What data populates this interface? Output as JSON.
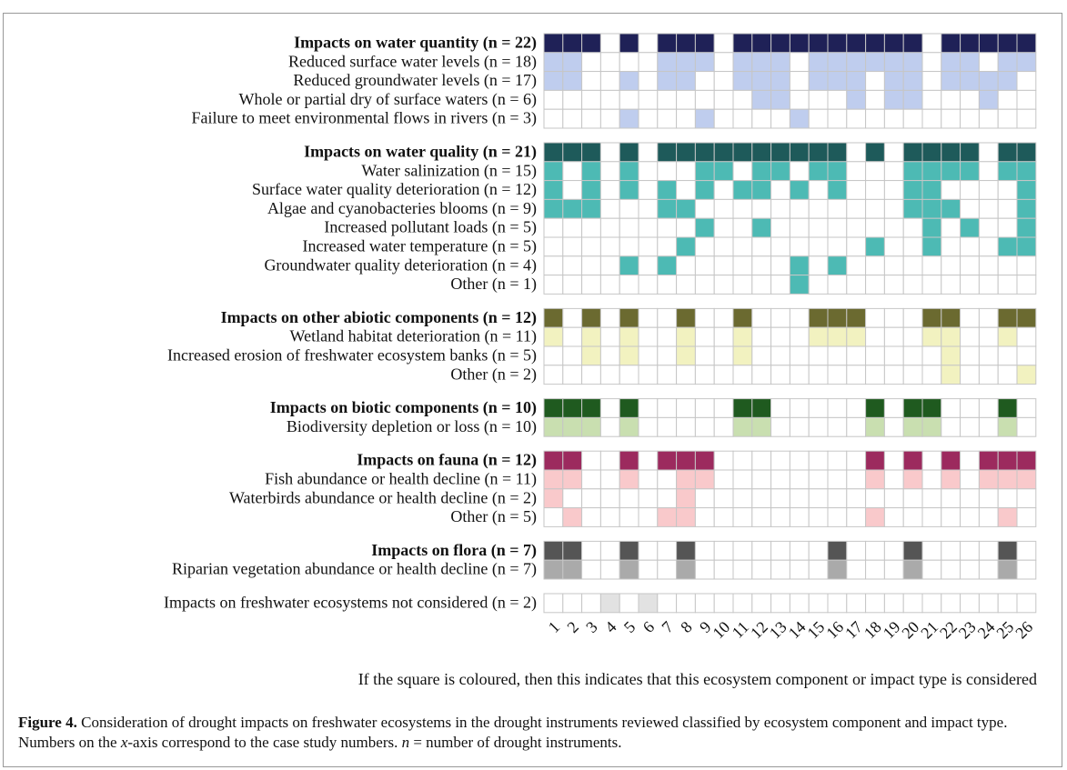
{
  "chart_data": {
    "type": "heatmap",
    "categories": [
      "1",
      "2",
      "3",
      "4",
      "5",
      "6",
      "7",
      "8",
      "9",
      "10",
      "11",
      "12",
      "13",
      "14",
      "15",
      "16",
      "17",
      "18",
      "19",
      "20",
      "21",
      "22",
      "23",
      "24",
      "25",
      "26"
    ],
    "groups": [
      {
        "label": "Impacts on water quantity (n = 22)",
        "color": "#1f2157",
        "item_color": "#bfcdee",
        "values": [
          1,
          1,
          1,
          0,
          1,
          0,
          1,
          1,
          1,
          0,
          1,
          1,
          1,
          1,
          1,
          1,
          1,
          1,
          1,
          1,
          0,
          1,
          1,
          1,
          1,
          1
        ],
        "items": [
          {
            "label": "Reduced surface water levels (n = 18)",
            "values": [
              1,
              1,
              0,
              0,
              0,
              0,
              1,
              1,
              1,
              0,
              1,
              1,
              1,
              0,
              1,
              1,
              1,
              1,
              1,
              1,
              0,
              1,
              1,
              0,
              1,
              1
            ]
          },
          {
            "label": "Reduced groundwater levels (n = 17)",
            "values": [
              1,
              1,
              0,
              0,
              1,
              0,
              1,
              1,
              0,
              0,
              1,
              1,
              1,
              0,
              1,
              1,
              1,
              0,
              1,
              1,
              0,
              1,
              1,
              1,
              1,
              0
            ]
          },
          {
            "label": "Whole or partial dry of surface waters (n = 6)",
            "values": [
              0,
              0,
              0,
              0,
              0,
              0,
              0,
              0,
              0,
              0,
              0,
              1,
              1,
              0,
              0,
              0,
              1,
              0,
              1,
              1,
              0,
              0,
              0,
              1,
              0,
              0
            ]
          },
          {
            "label": "Failure to meet environmental flows in rivers (n = 3)",
            "values": [
              0,
              0,
              0,
              0,
              1,
              0,
              0,
              0,
              1,
              0,
              0,
              0,
              0,
              1,
              0,
              0,
              0,
              0,
              0,
              0,
              0,
              0,
              0,
              0,
              0,
              0
            ]
          }
        ]
      },
      {
        "label": "Impacts on water quality (n = 21)",
        "color": "#1e5a5a",
        "item_color": "#4dbab4",
        "values": [
          1,
          1,
          1,
          0,
          1,
          0,
          1,
          1,
          1,
          1,
          1,
          1,
          1,
          1,
          1,
          1,
          0,
          1,
          0,
          1,
          1,
          1,
          1,
          0,
          1,
          1
        ],
        "items": [
          {
            "label": "Water salinization (n = 15)",
            "values": [
              1,
              0,
              1,
              0,
              1,
              0,
              0,
              0,
              1,
              1,
              0,
              1,
              1,
              0,
              1,
              1,
              0,
              0,
              0,
              1,
              1,
              1,
              1,
              0,
              1,
              1
            ]
          },
          {
            "label": "Surface water quality deterioration (n = 12)",
            "values": [
              1,
              0,
              1,
              0,
              1,
              0,
              1,
              0,
              1,
              0,
              1,
              1,
              0,
              1,
              0,
              1,
              0,
              0,
              0,
              1,
              1,
              0,
              0,
              0,
              0,
              1
            ]
          },
          {
            "label": "Algae and cyanobacteries blooms (n = 9)",
            "values": [
              1,
              1,
              1,
              0,
              0,
              0,
              1,
              1,
              0,
              0,
              0,
              0,
              0,
              0,
              0,
              0,
              0,
              0,
              0,
              1,
              1,
              1,
              0,
              0,
              0,
              1
            ]
          },
          {
            "label": "Increased pollutant loads (n = 5)",
            "values": [
              0,
              0,
              0,
              0,
              0,
              0,
              0,
              0,
              1,
              0,
              0,
              1,
              0,
              0,
              0,
              0,
              0,
              0,
              0,
              0,
              1,
              0,
              1,
              0,
              0,
              1
            ]
          },
          {
            "label": "Increased water temperature (n = 5)",
            "values": [
              0,
              0,
              0,
              0,
              0,
              0,
              0,
              1,
              0,
              0,
              0,
              0,
              0,
              0,
              0,
              0,
              0,
              1,
              0,
              0,
              1,
              0,
              0,
              0,
              1,
              1
            ]
          },
          {
            "label": "Groundwater quality deterioration (n = 4)",
            "values": [
              0,
              0,
              0,
              0,
              1,
              0,
              1,
              0,
              0,
              0,
              0,
              0,
              0,
              1,
              0,
              1,
              0,
              0,
              0,
              0,
              0,
              0,
              0,
              0,
              0,
              0
            ]
          },
          {
            "label": "Other (n = 1)",
            "values": [
              0,
              0,
              0,
              0,
              0,
              0,
              0,
              0,
              0,
              0,
              0,
              0,
              0,
              1,
              0,
              0,
              0,
              0,
              0,
              0,
              0,
              0,
              0,
              0,
              0,
              0
            ]
          }
        ]
      },
      {
        "label": "Impacts on other abiotic components (n = 12)",
        "color": "#6b6a30",
        "item_color": "#f2f2c0",
        "values": [
          1,
          0,
          1,
          0,
          1,
          0,
          0,
          1,
          0,
          0,
          1,
          0,
          0,
          0,
          1,
          1,
          1,
          0,
          0,
          0,
          1,
          1,
          0,
          0,
          1,
          1
        ],
        "items": [
          {
            "label": "Wetland habitat deterioration (n = 11)",
            "values": [
              1,
              0,
              1,
              0,
              1,
              0,
              0,
              1,
              0,
              0,
              1,
              0,
              0,
              0,
              1,
              1,
              1,
              0,
              0,
              0,
              1,
              1,
              0,
              0,
              1,
              0
            ]
          },
          {
            "label": "Increased erosion of freshwater ecosystem banks (n = 5)",
            "values": [
              0,
              0,
              1,
              0,
              1,
              0,
              0,
              1,
              0,
              0,
              1,
              0,
              0,
              0,
              0,
              0,
              0,
              0,
              0,
              0,
              0,
              1,
              0,
              0,
              0,
              0
            ]
          },
          {
            "label": "Other (n = 2)",
            "values": [
              0,
              0,
              0,
              0,
              0,
              0,
              0,
              0,
              0,
              0,
              0,
              0,
              0,
              0,
              0,
              0,
              0,
              0,
              0,
              0,
              0,
              1,
              0,
              0,
              0,
              1
            ]
          }
        ]
      },
      {
        "label": "Impacts on biotic components (n = 10)",
        "color": "#1f5a1f",
        "item_color": "#c9dfb0",
        "values": [
          1,
          1,
          1,
          0,
          1,
          0,
          0,
          0,
          0,
          0,
          1,
          1,
          0,
          0,
          0,
          0,
          0,
          1,
          0,
          1,
          1,
          0,
          0,
          0,
          1,
          0
        ],
        "items": [
          {
            "label": "Biodiversity depletion or loss (n = 10)",
            "values": [
              1,
              1,
              1,
              0,
              1,
              0,
              0,
              0,
              0,
              0,
              1,
              1,
              0,
              0,
              0,
              0,
              0,
              1,
              0,
              1,
              1,
              0,
              0,
              0,
              1,
              0
            ]
          }
        ]
      },
      {
        "label": "Impacts on fauna (n = 12)",
        "color": "#9c2a5e",
        "item_color": "#f9c9cb",
        "values": [
          1,
          1,
          0,
          0,
          1,
          0,
          1,
          1,
          1,
          0,
          0,
          0,
          0,
          0,
          0,
          0,
          0,
          1,
          0,
          1,
          0,
          1,
          0,
          1,
          1,
          1
        ],
        "items": [
          {
            "label": "Fish abundance or health decline (n = 11)",
            "values": [
              1,
              1,
              0,
              0,
              1,
              0,
              0,
              1,
              1,
              0,
              0,
              0,
              0,
              0,
              0,
              0,
              0,
              1,
              0,
              1,
              0,
              1,
              0,
              1,
              1,
              1
            ]
          },
          {
            "label": "Waterbirds abundance or health decline (n = 2)",
            "values": [
              1,
              0,
              0,
              0,
              0,
              0,
              0,
              1,
              0,
              0,
              0,
              0,
              0,
              0,
              0,
              0,
              0,
              0,
              0,
              0,
              0,
              0,
              0,
              0,
              0,
              0
            ]
          },
          {
            "label": "Other (n = 5)",
            "values": [
              0,
              1,
              0,
              0,
              0,
              0,
              1,
              1,
              0,
              0,
              0,
              0,
              0,
              0,
              0,
              0,
              0,
              1,
              0,
              0,
              0,
              0,
              0,
              0,
              1,
              0
            ]
          }
        ]
      },
      {
        "label": "Impacts on flora (n = 7)",
        "color": "#555555",
        "item_color": "#aaaaaa",
        "values": [
          1,
          1,
          0,
          0,
          1,
          0,
          0,
          1,
          0,
          0,
          0,
          0,
          0,
          0,
          0,
          1,
          0,
          0,
          0,
          1,
          0,
          0,
          0,
          0,
          1,
          0
        ],
        "items": [
          {
            "label": "Riparian vegetation abundance or health decline (n = 7)",
            "values": [
              1,
              1,
              0,
              0,
              1,
              0,
              0,
              1,
              0,
              0,
              0,
              0,
              0,
              0,
              0,
              1,
              0,
              0,
              0,
              1,
              0,
              0,
              0,
              0,
              1,
              0
            ]
          }
        ]
      },
      {
        "label": "Impacts on freshwater ecosystems not considered (n = 2)",
        "color": "#e2e2e2",
        "values": [
          0,
          0,
          0,
          1,
          0,
          1,
          0,
          0,
          0,
          0,
          0,
          0,
          0,
          0,
          0,
          0,
          0,
          0,
          0,
          0,
          0,
          0,
          0,
          0,
          0,
          0
        ],
        "items": []
      }
    ],
    "note": "If the square is coloured, then this indicates that this ecosystem component or impact type is considered"
  },
  "caption": {
    "label": "Figure 4.",
    "parts": [
      " Consideration of drought impacts on freshwater ecosystems in the drought instruments reviewed classified by ecosystem component and impact type. Numbers on the ",
      "x",
      "-axis correspond to the case study numbers. ",
      "n",
      " = number of drought instruments."
    ]
  }
}
